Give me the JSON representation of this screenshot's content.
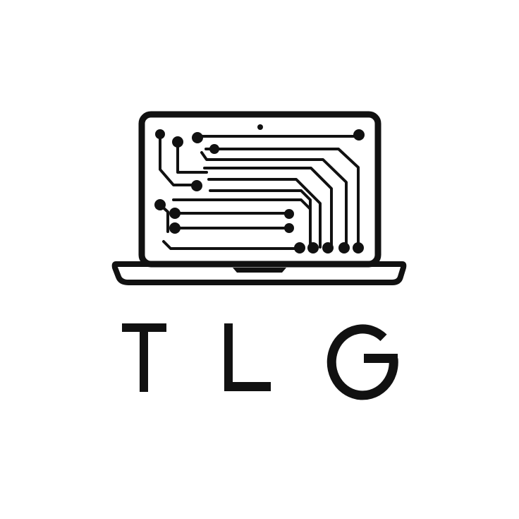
{
  "logo": {
    "wordmark": "TLG",
    "ink_color": "#111111",
    "background_color": "#ffffff",
    "icon": "laptop-circuit-icon"
  }
}
